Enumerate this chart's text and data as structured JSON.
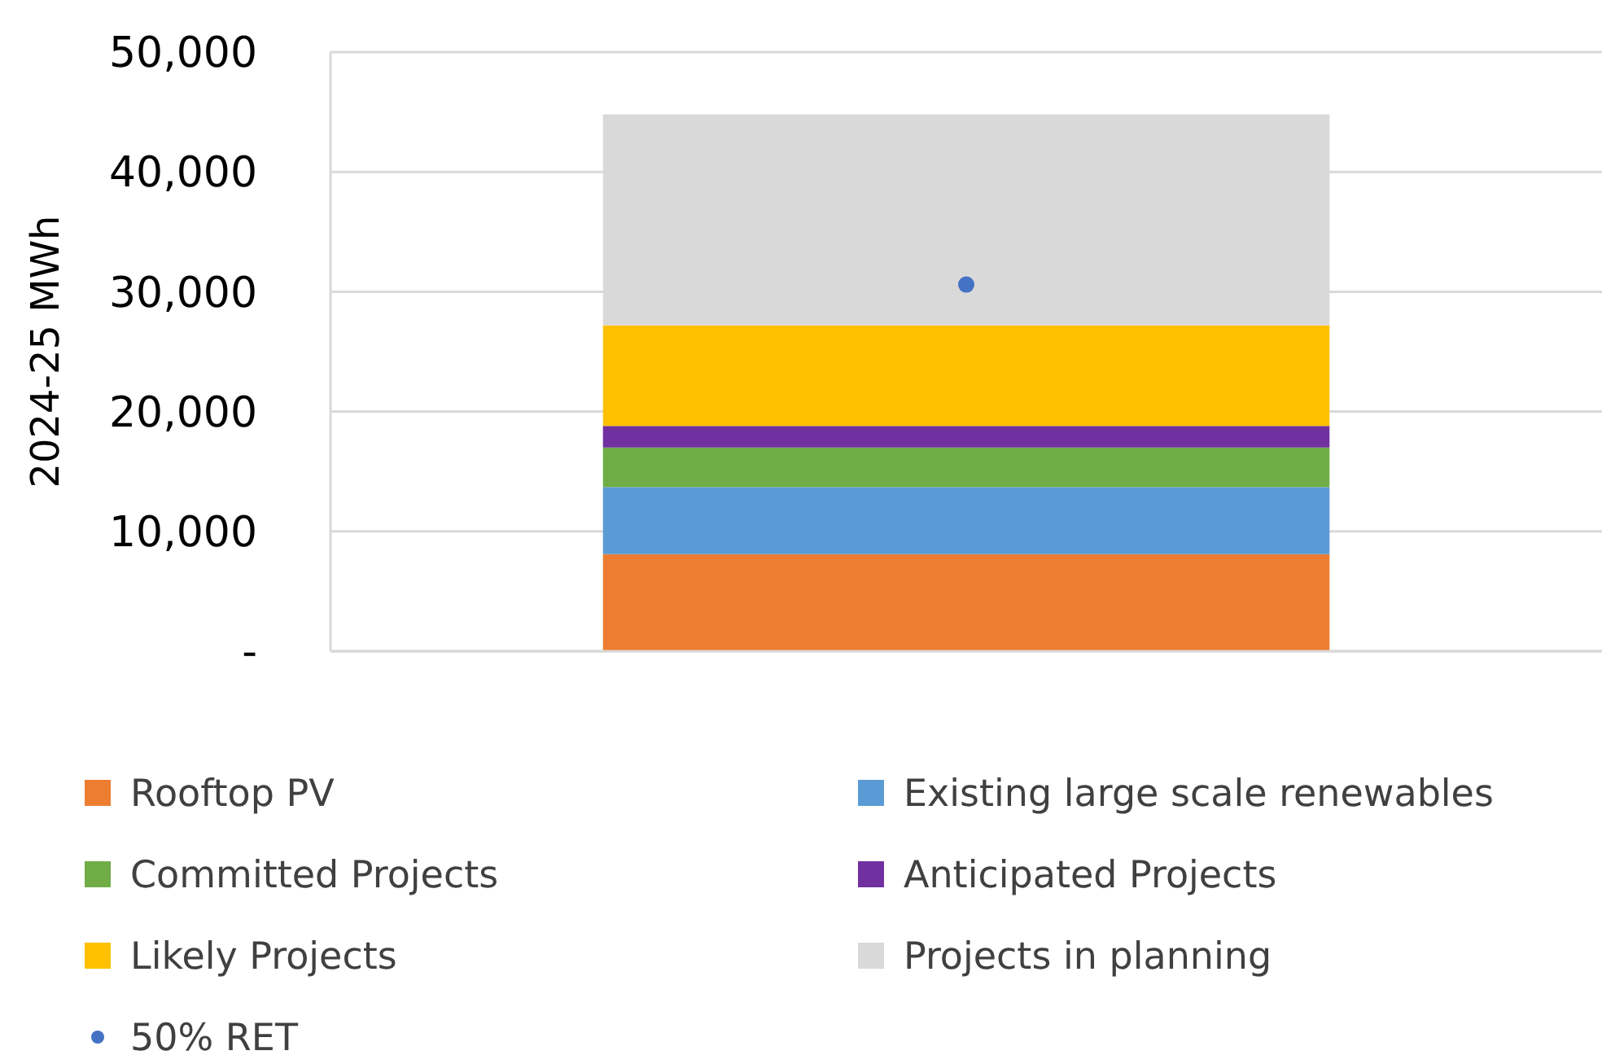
{
  "chart_data": {
    "type": "bar",
    "stacked": true,
    "ylabel": "2024-25 MWh",
    "categories": [
      null
    ],
    "series": [
      {
        "name": "Rooftop PV",
        "color": "#ed7d31",
        "values": [
          8100
        ]
      },
      {
        "name": "Existing large scale renewables",
        "color": "#5b9bd5",
        "values": [
          5600
        ]
      },
      {
        "name": "Committed Projects",
        "color": "#70ad47",
        "values": [
          3300
        ]
      },
      {
        "name": "Anticipated Projects",
        "color": "#7030a0",
        "values": [
          1800
        ]
      },
      {
        "name": "Likely Projects",
        "color": "#ffc000",
        "values": [
          8400
        ]
      },
      {
        "name": "Projects in planning",
        "color": "#d9d9d9",
        "values": [
          17600
        ]
      },
      {
        "name": "50% RET",
        "color": "#4472c4",
        "type": "scatter",
        "marker": "circle",
        "values": [
          30600
        ]
      }
    ],
    "ylim": [
      0,
      50000
    ],
    "yticks": [
      {
        "value": 0,
        "label": "-"
      },
      {
        "value": 10000,
        "label": "10,000"
      },
      {
        "value": 20000,
        "label": "20,000"
      },
      {
        "value": 30000,
        "label": "30,000"
      },
      {
        "value": 40000,
        "label": "40,000"
      },
      {
        "value": 50000,
        "label": "50,000"
      }
    ],
    "grid": "y",
    "legend": "bottom"
  }
}
